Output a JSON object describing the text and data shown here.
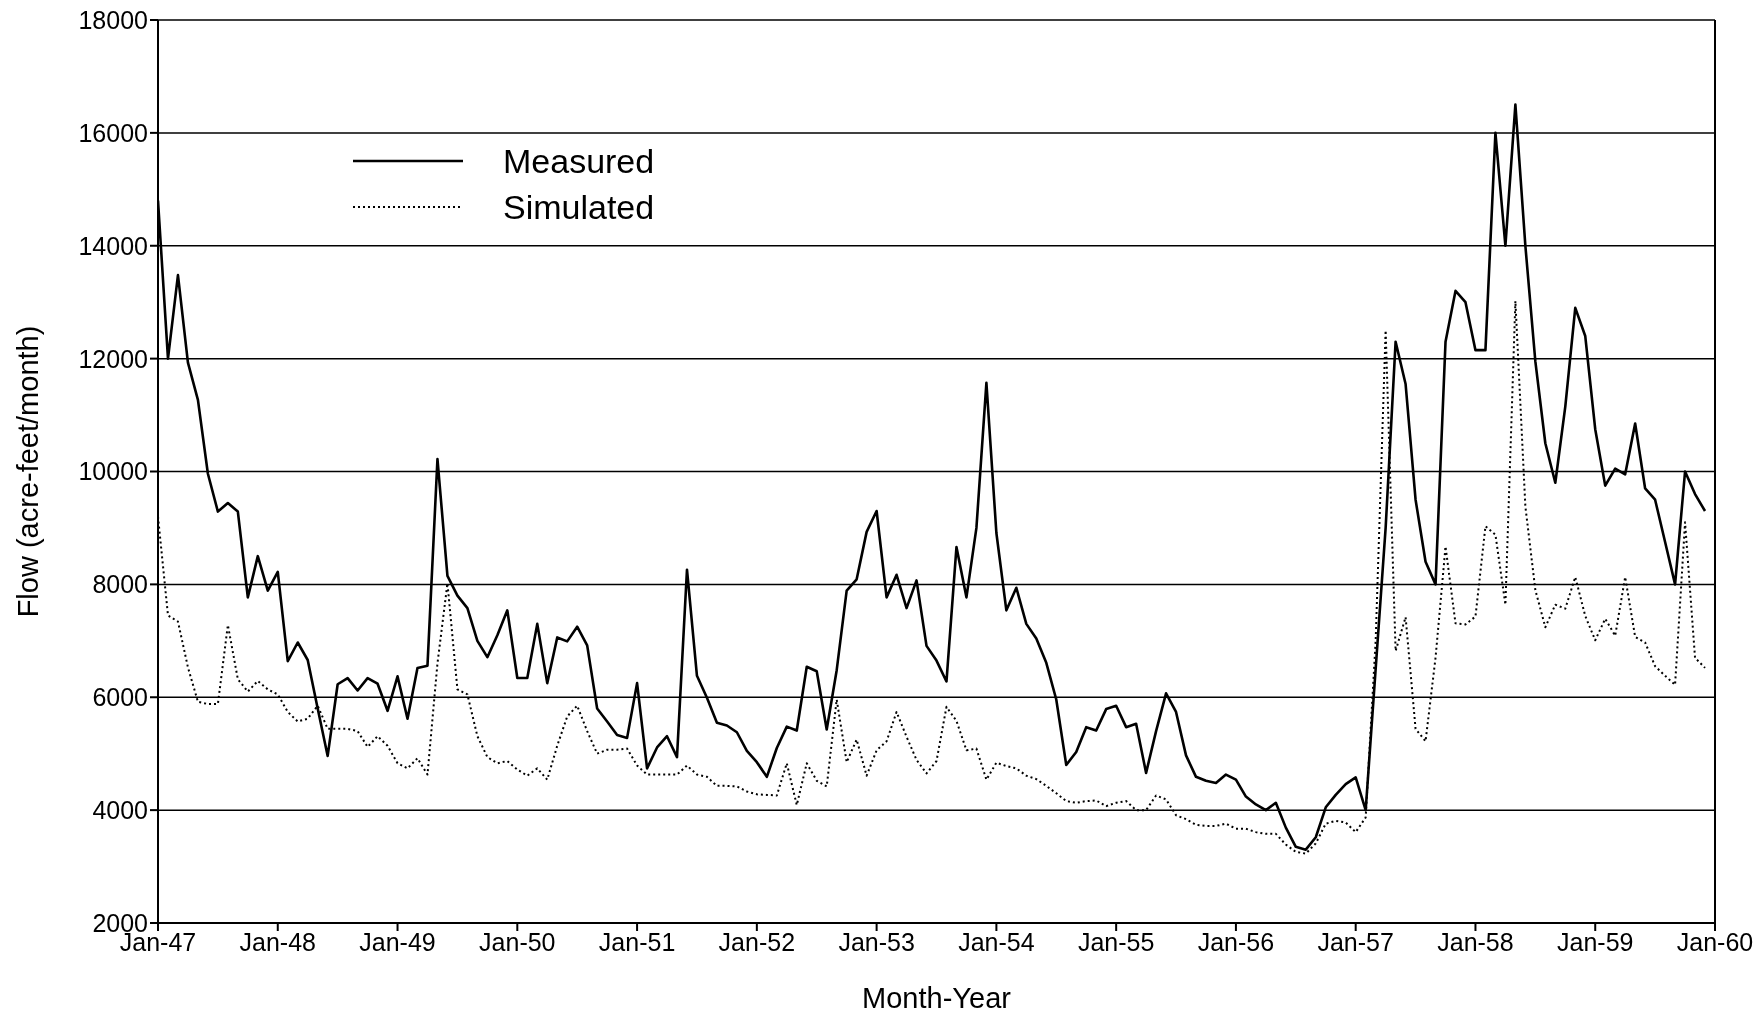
{
  "chart_data": {
    "type": "line",
    "xlabel": "Month-Year",
    "ylabel": "Flow (acre-feet/month)",
    "x": [
      "1947-01",
      "1947-02",
      "1947-03",
      "1947-04",
      "1947-05",
      "1947-06",
      "1947-07",
      "1947-08",
      "1947-09",
      "1947-10",
      "1947-11",
      "1947-12",
      "1948-01",
      "1948-02",
      "1948-03",
      "1948-04",
      "1948-05",
      "1948-06",
      "1948-07",
      "1948-08",
      "1948-09",
      "1948-10",
      "1948-11",
      "1948-12",
      "1949-01",
      "1949-02",
      "1949-03",
      "1949-04",
      "1949-05",
      "1949-06",
      "1949-07",
      "1949-08",
      "1949-09",
      "1949-10",
      "1949-11",
      "1949-12",
      "1950-01",
      "1950-02",
      "1950-03",
      "1950-04",
      "1950-05",
      "1950-06",
      "1950-07",
      "1950-08",
      "1950-09",
      "1950-10",
      "1950-11",
      "1950-12",
      "1951-01",
      "1951-02",
      "1951-03",
      "1951-04",
      "1951-05",
      "1951-06",
      "1951-07",
      "1951-08",
      "1951-09",
      "1951-10",
      "1951-11",
      "1951-12",
      "1952-01",
      "1952-02",
      "1952-03",
      "1952-04",
      "1952-05",
      "1952-06",
      "1952-07",
      "1952-08",
      "1952-09",
      "1952-10",
      "1952-11",
      "1952-12",
      "1953-01",
      "1953-02",
      "1953-03",
      "1953-04",
      "1953-05",
      "1953-06",
      "1953-07",
      "1953-08",
      "1953-09",
      "1953-10",
      "1953-11",
      "1953-12",
      "1954-01",
      "1954-02",
      "1954-03",
      "1954-04",
      "1954-05",
      "1954-06",
      "1954-07",
      "1954-08",
      "1954-09",
      "1954-10",
      "1954-11",
      "1954-12",
      "1955-01",
      "1955-02",
      "1955-03",
      "1955-04",
      "1955-05",
      "1955-06",
      "1955-07",
      "1955-08",
      "1955-09",
      "1955-10",
      "1955-11",
      "1955-12",
      "1956-01",
      "1956-02",
      "1956-03",
      "1956-04",
      "1956-05",
      "1956-06",
      "1956-07",
      "1956-08",
      "1956-09",
      "1956-10",
      "1956-11",
      "1956-12",
      "1957-01",
      "1957-02",
      "1957-03",
      "1957-04",
      "1957-05",
      "1957-06",
      "1957-07",
      "1957-08",
      "1957-09",
      "1957-10",
      "1957-11",
      "1957-12",
      "1958-01",
      "1958-02",
      "1958-03",
      "1958-04",
      "1958-05",
      "1958-06",
      "1958-07",
      "1958-08",
      "1958-09",
      "1958-10",
      "1958-11",
      "1958-12",
      "1959-01",
      "1959-02",
      "1959-03",
      "1959-04",
      "1959-05",
      "1959-06",
      "1959-07",
      "1959-08",
      "1959-09",
      "1959-10",
      "1959-11",
      "1959-12"
    ],
    "series": [
      {
        "name": "Measured",
        "color": "#000000",
        "line_style": "solid",
        "values": [
          14800,
          12000,
          13480,
          11930,
          11270,
          9960,
          9290,
          9440,
          9290,
          7770,
          8500,
          7890,
          8220,
          6640,
          6970,
          6660,
          5800,
          4960,
          6230,
          6340,
          6120,
          6340,
          6240,
          5760,
          6370,
          5620,
          6520,
          6560,
          10220,
          8150,
          7800,
          7580,
          7000,
          6710,
          7100,
          7540,
          6340,
          6340,
          7300,
          6250,
          7060,
          6990,
          7250,
          6920,
          5800,
          5570,
          5330,
          5280,
          6250,
          4740,
          5110,
          5310,
          4940,
          8260,
          6380,
          5990,
          5550,
          5500,
          5380,
          5050,
          4850,
          4590,
          5100,
          5480,
          5410,
          6540,
          6460,
          5430,
          6480,
          7890,
          8090,
          8930,
          9300,
          7770,
          8170,
          7580,
          8070,
          6910,
          6650,
          6280,
          8660,
          7770,
          9000,
          11570,
          8910,
          7540,
          7940,
          7300,
          7040,
          6610,
          5960,
          4800,
          5030,
          5470,
          5410,
          5790,
          5850,
          5470,
          5530,
          4660,
          5400,
          6070,
          5740,
          4970,
          4590,
          4520,
          4480,
          4630,
          4540,
          4240,
          4100,
          4000,
          4130,
          3690,
          3350,
          3300,
          3520,
          4050,
          4270,
          4460,
          4580,
          4000,
          6500,
          9000,
          12300,
          11550,
          9500,
          8400,
          8000,
          12300,
          13200,
          13000,
          12150,
          12150,
          16000,
          14000,
          16500,
          14000,
          11950,
          10500,
          9800,
          11150,
          12900,
          12400,
          10750,
          9750,
          10050,
          9950,
          10850,
          9700,
          9500,
          8750,
          8000,
          10000,
          9600,
          9300
        ]
      },
      {
        "name": "Simulated",
        "color": "#000000",
        "line_style": "dotted",
        "values": [
          9200,
          7450,
          7340,
          6530,
          5920,
          5880,
          5880,
          7280,
          6320,
          6100,
          6290,
          6140,
          6050,
          5740,
          5570,
          5620,
          5850,
          5440,
          5440,
          5440,
          5400,
          5120,
          5310,
          5140,
          4830,
          4740,
          4920,
          4630,
          6600,
          8020,
          6140,
          6050,
          5310,
          4940,
          4830,
          4870,
          4720,
          4610,
          4740,
          4540,
          5140,
          5660,
          5850,
          5400,
          5000,
          5070,
          5070,
          5090,
          4790,
          4630,
          4630,
          4630,
          4630,
          4790,
          4630,
          4590,
          4430,
          4430,
          4420,
          4330,
          4280,
          4270,
          4260,
          4830,
          4090,
          4830,
          4520,
          4420,
          5960,
          4850,
          5250,
          4610,
          5060,
          5220,
          5740,
          5300,
          4890,
          4650,
          4870,
          5830,
          5580,
          5060,
          5090,
          4540,
          4840,
          4780,
          4740,
          4610,
          4550,
          4430,
          4300,
          4160,
          4130,
          4160,
          4170,
          4070,
          4130,
          4160,
          4000,
          4000,
          4260,
          4190,
          3910,
          3840,
          3740,
          3720,
          3720,
          3760,
          3670,
          3670,
          3610,
          3580,
          3580,
          3390,
          3260,
          3230,
          3410,
          3760,
          3810,
          3780,
          3610,
          3870,
          7000,
          12500,
          6820,
          7420,
          5440,
          5220,
          6700,
          8670,
          7310,
          7290,
          7430,
          9030,
          8880,
          7640,
          13020,
          9380,
          7900,
          7240,
          7640,
          7570,
          8130,
          7440,
          7010,
          7390,
          7090,
          8130,
          7070,
          6970,
          6550,
          6380,
          6220,
          9100,
          6700,
          6520
        ]
      }
    ],
    "xlim": [
      "1947-01",
      "1960-01"
    ],
    "xticks": [
      {
        "value": "1947-01",
        "label": "Jan-47"
      },
      {
        "value": "1948-01",
        "label": "Jan-48"
      },
      {
        "value": "1949-01",
        "label": "Jan-49"
      },
      {
        "value": "1950-01",
        "label": "Jan-50"
      },
      {
        "value": "1951-01",
        "label": "Jan-51"
      },
      {
        "value": "1952-01",
        "label": "Jan-52"
      },
      {
        "value": "1953-01",
        "label": "Jan-53"
      },
      {
        "value": "1954-01",
        "label": "Jan-54"
      },
      {
        "value": "1955-01",
        "label": "Jan-55"
      },
      {
        "value": "1956-01",
        "label": "Jan-56"
      },
      {
        "value": "1957-01",
        "label": "Jan-57"
      },
      {
        "value": "1958-01",
        "label": "Jan-58"
      },
      {
        "value": "1959-01",
        "label": "Jan-59"
      },
      {
        "value": "1960-01",
        "label": "Jan-60"
      }
    ],
    "ylim": [
      2000,
      18000
    ],
    "yticks": [
      2000,
      4000,
      6000,
      8000,
      10000,
      12000,
      14000,
      16000,
      18000
    ],
    "grid": "y",
    "legend": "top left"
  }
}
